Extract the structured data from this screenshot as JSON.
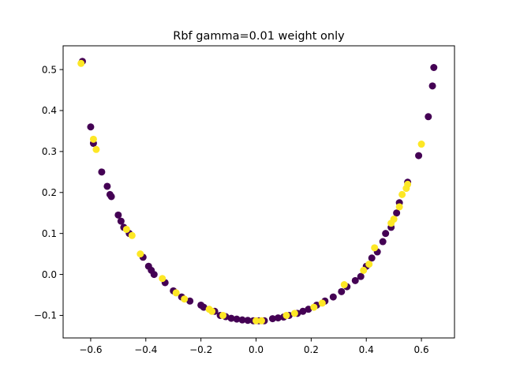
{
  "chart_data": {
    "type": "scatter",
    "title": "Rbf gamma=0.01 weight only",
    "xlabel": "",
    "ylabel": "",
    "xlim": [
      -0.7,
      0.72
    ],
    "ylim": [
      -0.155,
      0.558
    ],
    "x_ticks": [
      -0.6,
      -0.4,
      -0.2,
      0.0,
      0.2,
      0.4,
      0.6
    ],
    "x_tick_labels": [
      "−0.6",
      "−0.4",
      "−0.2",
      "0.0",
      "0.2",
      "0.4",
      "0.6"
    ],
    "y_ticks": [
      -0.1,
      0.0,
      0.1,
      0.2,
      0.3,
      0.4,
      0.5
    ],
    "y_tick_labels": [
      "−0.1",
      "0.0",
      "0.1",
      "0.2",
      "0.3",
      "0.4",
      "0.5"
    ],
    "grid": false,
    "legend": "none",
    "colors": {
      "class_0": "#440154",
      "class_1": "#fde725"
    },
    "series": [
      {
        "class": 0,
        "color": "#440154",
        "points": [
          [
            -0.63,
            0.52
          ],
          [
            -0.6,
            0.36
          ],
          [
            -0.59,
            0.32
          ],
          [
            -0.56,
            0.25
          ],
          [
            -0.54,
            0.215
          ],
          [
            -0.53,
            0.195
          ],
          [
            -0.525,
            0.19
          ],
          [
            -0.5,
            0.145
          ],
          [
            -0.49,
            0.13
          ],
          [
            -0.48,
            0.115
          ],
          [
            -0.46,
            0.1
          ],
          [
            -0.41,
            0.042
          ],
          [
            -0.39,
            0.02
          ],
          [
            -0.38,
            0.01
          ],
          [
            -0.37,
            0.0
          ],
          [
            -0.33,
            -0.02
          ],
          [
            -0.3,
            -0.04
          ],
          [
            -0.27,
            -0.055
          ],
          [
            -0.24,
            -0.065
          ],
          [
            -0.2,
            -0.075
          ],
          [
            -0.19,
            -0.08
          ],
          [
            -0.15,
            -0.09
          ],
          [
            -0.13,
            -0.1
          ],
          [
            -0.11,
            -0.103
          ],
          [
            -0.09,
            -0.107
          ],
          [
            -0.07,
            -0.109
          ],
          [
            -0.05,
            -0.111
          ],
          [
            -0.03,
            -0.112
          ],
          [
            -0.01,
            -0.113
          ],
          [
            0.01,
            -0.113
          ],
          [
            0.03,
            -0.113
          ],
          [
            0.06,
            -0.108
          ],
          [
            0.08,
            -0.106
          ],
          [
            0.1,
            -0.104
          ],
          [
            0.12,
            -0.1
          ],
          [
            0.15,
            -0.095
          ],
          [
            0.17,
            -0.09
          ],
          [
            0.19,
            -0.085
          ],
          [
            0.22,
            -0.075
          ],
          [
            0.25,
            -0.065
          ],
          [
            0.28,
            -0.055
          ],
          [
            0.31,
            -0.042
          ],
          [
            0.33,
            -0.03
          ],
          [
            0.36,
            -0.015
          ],
          [
            0.38,
            -0.005
          ],
          [
            0.4,
            0.02
          ],
          [
            0.42,
            0.04
          ],
          [
            0.44,
            0.055
          ],
          [
            0.46,
            0.08
          ],
          [
            0.47,
            0.1
          ],
          [
            0.49,
            0.115
          ],
          [
            0.51,
            0.15
          ],
          [
            0.52,
            0.175
          ],
          [
            0.55,
            0.225
          ],
          [
            0.59,
            0.29
          ],
          [
            0.625,
            0.385
          ],
          [
            0.64,
            0.46
          ],
          [
            0.645,
            0.505
          ]
        ]
      },
      {
        "class": 1,
        "color": "#fde725",
        "points": [
          [
            -0.635,
            0.515
          ],
          [
            -0.59,
            0.33
          ],
          [
            -0.58,
            0.305
          ],
          [
            -0.45,
            0.095
          ],
          [
            -0.47,
            0.11
          ],
          [
            -0.42,
            0.05
          ],
          [
            -0.34,
            -0.01
          ],
          [
            -0.29,
            -0.045
          ],
          [
            -0.26,
            -0.06
          ],
          [
            -0.17,
            -0.085
          ],
          [
            -0.16,
            -0.09
          ],
          [
            -0.12,
            -0.1
          ],
          [
            0.0,
            -0.113
          ],
          [
            0.02,
            -0.113
          ],
          [
            0.11,
            -0.1
          ],
          [
            0.14,
            -0.095
          ],
          [
            0.21,
            -0.08
          ],
          [
            0.24,
            -0.07
          ],
          [
            0.32,
            -0.025
          ],
          [
            0.39,
            0.01
          ],
          [
            0.41,
            0.025
          ],
          [
            0.43,
            0.065
          ],
          [
            0.5,
            0.135
          ],
          [
            0.49,
            0.125
          ],
          [
            0.52,
            0.165
          ],
          [
            0.53,
            0.195
          ],
          [
            0.545,
            0.21
          ],
          [
            0.55,
            0.22
          ],
          [
            0.6,
            0.318
          ]
        ]
      }
    ]
  }
}
